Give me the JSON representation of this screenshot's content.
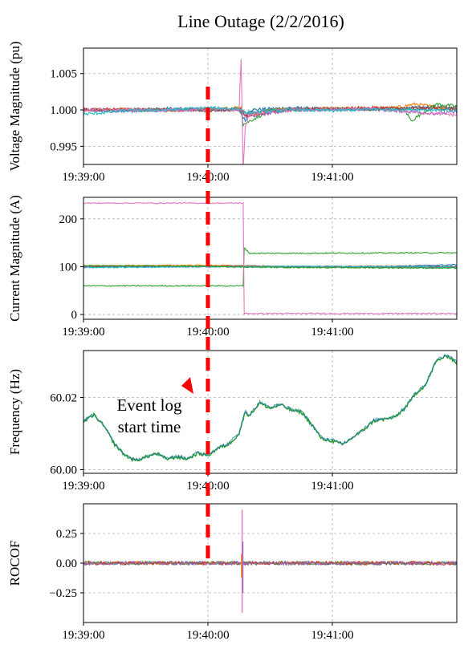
{
  "figure": {
    "title": "Line Outage (2/2/2016)",
    "annotation": "Event log\nstart time",
    "colors": {
      "series": [
        "#1f77b4",
        "#ff7f0e",
        "#2ca02c",
        "#d62728",
        "#9467bd",
        "#8c564b",
        "#e377c2",
        "#17becf"
      ],
      "event_line": "#ff0000",
      "grid": "#b0b0b0"
    }
  },
  "chart_data": [
    {
      "type": "line",
      "ylabel": "Voltage Magnitude (pu)",
      "xlabel": "",
      "x_ticks": [
        "19:39:00",
        "19:40:00",
        "19:41:00"
      ],
      "x_range_seconds": [
        0,
        180
      ],
      "ylim": [
        0.9925,
        1.0085
      ],
      "y_ticks": [
        0.995,
        1.0,
        1.005
      ],
      "y_tick_labels": [
        "0.995",
        "1.000",
        "1.005"
      ],
      "grid": true,
      "event_time": "19:40:00",
      "series_keypoints": [
        {
          "x": [
            0,
            20,
            40,
            60,
            70,
            75,
            76,
            78,
            80,
            100,
            120,
            150,
            170,
            180
          ],
          "y": [
            1.0,
            0.9998,
            1.0002,
            1.0,
            1.0001,
            1.0,
            0.9995,
            0.9985,
            1.0,
            1.0003,
            1.0001,
            1.0002,
            1.0004,
            1.0002
          ]
        },
        {
          "x": [
            0,
            20,
            40,
            60,
            76,
            78,
            90,
            120,
            150,
            160,
            180
          ],
          "y": [
            1.0,
            1.0001,
            0.9999,
            1.0001,
            1.0003,
            0.999,
            1.0,
            1.0002,
            1.0003,
            1.0008,
            1.0
          ]
        },
        {
          "x": [
            0,
            30,
            60,
            76,
            77,
            90,
            120,
            155,
            158,
            170,
            180
          ],
          "y": [
            1.0,
            1.0,
            1.0001,
            1.0002,
            0.998,
            0.9999,
            1.0001,
            1.0,
            0.9985,
            1.0008,
            1.0005
          ]
        },
        {
          "x": [
            0,
            40,
            60,
            76,
            78,
            100,
            140,
            180
          ],
          "y": [
            1.0001,
            1.0,
            1.0001,
            1.0,
            0.9993,
            1.0,
            1.0003,
            1.0001
          ]
        },
        {
          "x": [
            0,
            30,
            60,
            76,
            78,
            100,
            140,
            170,
            180
          ],
          "y": [
            0.9998,
            0.9999,
            1.0,
            1.0,
            0.999,
            1.0,
            1.0001,
            0.9995,
            0.9997
          ]
        },
        {
          "x": [
            0,
            40,
            60,
            76,
            78,
            100,
            140,
            180
          ],
          "y": [
            1.0,
            1.0001,
            0.9999,
            1.0001,
            0.9995,
            1.0002,
            1.0001,
            1.0003
          ]
        },
        {
          "x": [
            0,
            40,
            60,
            75,
            76,
            77,
            78,
            80,
            100,
            140,
            170,
            180
          ],
          "y": [
            1.0,
            1.0,
            1.0001,
            1.0,
            1.007,
            0.992,
            0.9975,
            0.9995,
            1.0,
            1.0001,
            0.9995,
            0.9993
          ]
        },
        {
          "x": [
            0,
            5,
            20,
            40,
            60,
            76,
            78,
            100,
            120,
            140,
            180
          ],
          "y": [
            0.9994,
            0.9995,
            0.9999,
            1.0,
            1.0003,
            1.0001,
            0.9996,
            1.0,
            0.9999,
            1.0001,
            1.0
          ]
        }
      ]
    },
    {
      "type": "line",
      "ylabel": "Current Magnitude (A)",
      "xlabel": "",
      "x_ticks": [
        "19:39:00",
        "19:40:00",
        "19:41:00"
      ],
      "x_range_seconds": [
        0,
        180
      ],
      "ylim": [
        -10,
        245
      ],
      "y_ticks": [
        0,
        100,
        200
      ],
      "y_tick_labels": [
        "0",
        "100",
        "200"
      ],
      "grid": true,
      "event_time": "19:40:00",
      "series_keypoints": [
        {
          "x": [
            0,
            60,
            77,
            100,
            140,
            170,
            180
          ],
          "y": [
            100,
            101,
            102,
            99,
            100,
            103,
            104
          ]
        },
        {
          "x": [
            0,
            60,
            77,
            100,
            140,
            180
          ],
          "y": [
            102,
            103,
            102,
            100,
            100,
            98
          ]
        },
        {
          "x": [
            0,
            77,
            77.5,
            80,
            180
          ],
          "y": [
            60,
            60,
            140,
            128,
            129
          ]
        },
        {
          "x": [
            0,
            60,
            77,
            100,
            140,
            180
          ],
          "y": [
            101,
            100,
            101,
            100,
            99,
            99
          ]
        },
        {
          "x": [
            0,
            60,
            80,
            100,
            140,
            180
          ],
          "y": [
            100,
            100,
            101,
            99,
            100,
            100
          ]
        },
        {
          "x": [
            0,
            60,
            80,
            100,
            140,
            180
          ],
          "y": [
            99,
            101,
            100,
            100,
            101,
            100
          ]
        },
        {
          "x": [
            0,
            77,
            77.5,
            180
          ],
          "y": [
            233,
            233,
            2,
            2
          ]
        },
        {
          "x": [
            0,
            60,
            80,
            100,
            140,
            180
          ],
          "y": [
            98,
            100,
            100,
            101,
            100,
            99
          ]
        },
        {
          "x": [
            0,
            60,
            80,
            120,
            180
          ],
          "y": [
            102,
            101,
            99,
            98,
            97
          ]
        }
      ]
    },
    {
      "type": "line",
      "ylabel": "Frequency (Hz)",
      "xlabel": "",
      "x_ticks": [
        "19:39:00",
        "19:40:00",
        "19:41:00"
      ],
      "x_range_seconds": [
        0,
        180
      ],
      "ylim": [
        59.999,
        60.033
      ],
      "y_ticks": [
        60.0,
        60.02
      ],
      "y_tick_labels": [
        "60.00",
        "60.02"
      ],
      "grid": true,
      "event_time": "19:40:00",
      "series_keypoints": [
        {
          "x": [
            0,
            5,
            10,
            15,
            20,
            25,
            30,
            35,
            40,
            45,
            50,
            55,
            60,
            65,
            70,
            75,
            78,
            80,
            85,
            90,
            95,
            100,
            105,
            110,
            115,
            120,
            125,
            130,
            135,
            140,
            145,
            150,
            155,
            160,
            165,
            170,
            173,
            176,
            180
          ],
          "y": [
            60.0133,
            60.0152,
            60.012,
            60.007,
            60.004,
            60.0025,
            60.0035,
            60.0045,
            60.003,
            60.0035,
            60.003,
            60.0045,
            60.004,
            60.006,
            60.007,
            60.01,
            60.016,
            60.015,
            60.0185,
            60.017,
            60.018,
            60.0165,
            60.016,
            60.0125,
            60.0085,
            60.008,
            60.007,
            60.009,
            60.011,
            60.0135,
            60.014,
            60.0145,
            60.017,
            60.021,
            60.0235,
            60.03,
            60.031,
            60.0315,
            60.0295
          ]
        }
      ]
    },
    {
      "type": "line",
      "ylabel": "ROCOF",
      "xlabel": "",
      "x_ticks": [
        "19:39:00",
        "19:40:00",
        "19:41:00"
      ],
      "x_range_seconds": [
        0,
        180
      ],
      "ylim": [
        -0.5,
        0.5
      ],
      "y_ticks": [
        -0.25,
        0.0,
        0.25
      ],
      "y_tick_labels": [
        "−0.25",
        "0.00",
        "0.25"
      ],
      "grid": true,
      "event_time": "19:40:00",
      "spike": {
        "x": 76.5,
        "min": -0.42,
        "max": 0.45
      }
    }
  ]
}
